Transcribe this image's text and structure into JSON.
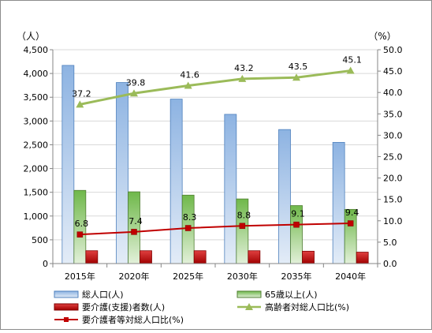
{
  "chart_data": {
    "type": "bar",
    "categories": [
      "2015年",
      "2020年",
      "2025年",
      "2030年",
      "2035年",
      "2040年"
    ],
    "left_axis": {
      "unit": "（人）",
      "range": [
        0,
        4500
      ],
      "ticks": [
        "0",
        "500",
        "1,000",
        "1,500",
        "2,000",
        "2,500",
        "3,000",
        "3,500",
        "4,000",
        "4,500"
      ]
    },
    "right_axis": {
      "unit": "（%）",
      "range": [
        0,
        50
      ],
      "ticks": [
        "0.0",
        "5.0",
        "10.0",
        "15.0",
        "20.0",
        "25.0",
        "30.0",
        "35.0",
        "40.0",
        "45.0",
        "50.0"
      ]
    },
    "series": [
      {
        "name": "総人口(人)",
        "kind": "bar",
        "axis": "left",
        "color": "#4f81bd",
        "values": [
          4170,
          3810,
          3460,
          3140,
          2820,
          2550
        ]
      },
      {
        "name": "65歳以上(人)",
        "kind": "bar",
        "axis": "left",
        "color": "#70ad47",
        "values": [
          1540,
          1510,
          1440,
          1360,
          1220,
          1140
        ]
      },
      {
        "name": "要介護(支援)者数(人)",
        "kind": "bar",
        "axis": "left",
        "color": "#c00000",
        "values": [
          270,
          270,
          270,
          270,
          260,
          240
        ]
      },
      {
        "name": "高齢者対総人口比(%)",
        "kind": "line",
        "axis": "right",
        "color": "#9bbb59",
        "values": [
          37.2,
          39.8,
          41.6,
          43.2,
          43.5,
          45.1
        ],
        "labels": [
          "37.2",
          "39.8",
          "41.6",
          "43.2",
          "43.5",
          "45.1"
        ]
      },
      {
        "name": "要介護者等対総人口比(%)",
        "kind": "line",
        "axis": "right",
        "color": "#c00000",
        "values": [
          6.8,
          7.4,
          8.3,
          8.8,
          9.1,
          9.4
        ],
        "labels": [
          "6.8",
          "7.4",
          "8.3",
          "8.8",
          "9.1",
          "9.4"
        ]
      }
    ],
    "grid": true,
    "legend": "bottom"
  }
}
